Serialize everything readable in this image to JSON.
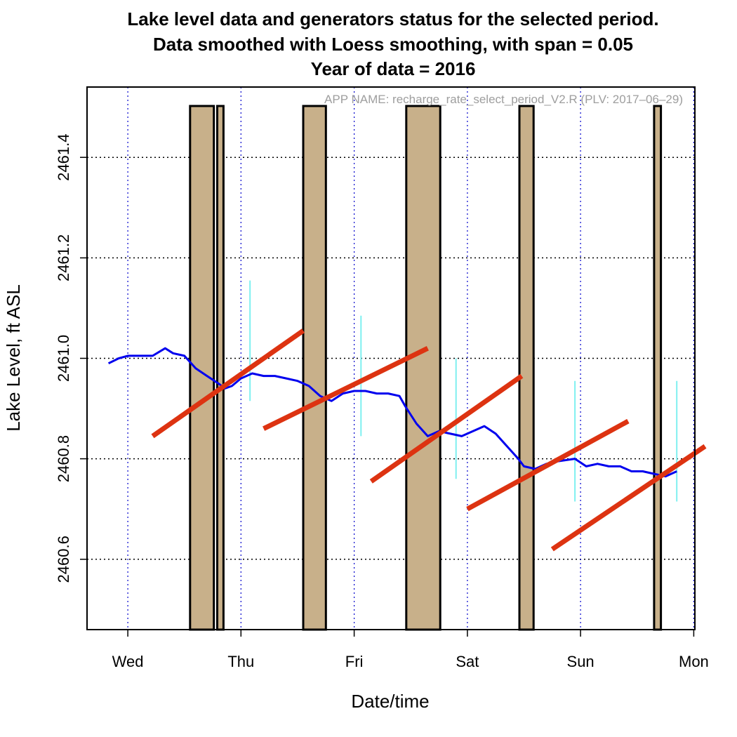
{
  "chart_data": {
    "type": "line",
    "title_lines": [
      "Lake level data and generators status for the selected period.",
      "Data smoothed with Loess smoothing, with span = 0.05",
      "Year of data = 2016"
    ],
    "annotation": "APP NAME: recharge_rate_select_period_V2.R (PLV: 2017–06–29)",
    "xlabel": "Date/time",
    "ylabel": "Lake Level, ft ASL",
    "x_ticks": [
      "Wed",
      "Thu",
      "Fri",
      "Sat",
      "Sun",
      "Mon"
    ],
    "x_unit": "days since Wed 00:00",
    "xlim": [
      -0.36,
      5.01
    ],
    "ylim": [
      2460.46,
      2461.54
    ],
    "y_ticks": [
      2460.6,
      2460.8,
      2461.0,
      2461.2,
      2461.4
    ],
    "grid": true,
    "colors": {
      "lake_level": "#0000ee",
      "generator_fill": "#c8b08a",
      "recharge_line": "#dd3311",
      "range_bar": "#7ff0f0",
      "grid": "#000000",
      "vgrid": "#0000cc"
    },
    "generator_status": [
      {
        "start": 0.55,
        "end": 0.76
      },
      {
        "start": 0.79,
        "end": 0.845
      },
      {
        "start": 1.55,
        "end": 1.75
      },
      {
        "start": 2.46,
        "end": 2.76
      },
      {
        "start": 3.46,
        "end": 3.585
      },
      {
        "start": 4.65,
        "end": 4.71
      }
    ],
    "lake_level_series": {
      "name": "Lake level (smoothed)",
      "x": [
        -0.17,
        -0.08,
        0.0,
        0.1,
        0.22,
        0.33,
        0.4,
        0.5,
        0.6,
        0.7,
        0.8,
        0.86,
        0.92,
        1.0,
        1.1,
        1.2,
        1.3,
        1.4,
        1.5,
        1.6,
        1.7,
        1.8,
        1.9,
        2.0,
        2.1,
        2.2,
        2.3,
        2.4,
        2.45,
        2.55,
        2.65,
        2.75,
        2.85,
        2.95,
        3.05,
        3.15,
        3.25,
        3.35,
        3.45,
        3.5,
        3.6,
        3.7,
        3.8,
        3.95,
        4.05,
        4.15,
        4.25,
        4.35,
        4.45,
        4.55,
        4.65,
        4.75,
        4.85
      ],
      "y": [
        2460.99,
        2461.0,
        2461.005,
        2461.005,
        2461.005,
        2461.02,
        2461.01,
        2461.005,
        2460.98,
        2460.965,
        2460.95,
        2460.94,
        2460.945,
        2460.96,
        2460.97,
        2460.965,
        2460.965,
        2460.96,
        2460.955,
        2460.945,
        2460.925,
        2460.915,
        2460.93,
        2460.935,
        2460.935,
        2460.93,
        2460.93,
        2460.925,
        2460.905,
        2460.87,
        2460.845,
        2460.855,
        2460.85,
        2460.845,
        2460.855,
        2460.865,
        2460.85,
        2460.825,
        2460.8,
        2460.785,
        2460.78,
        2460.79,
        2460.795,
        2460.8,
        2460.785,
        2460.79,
        2460.785,
        2460.785,
        2460.775,
        2460.775,
        2460.77,
        2460.765,
        2460.775
      ]
    },
    "recharge_lines": [
      {
        "x": [
          0.22,
          1.55
        ],
        "y": [
          2460.845,
          2461.055
        ]
      },
      {
        "x": [
          1.2,
          2.65
        ],
        "y": [
          2460.86,
          2461.02
        ]
      },
      {
        "x": [
          2.15,
          3.48
        ],
        "y": [
          2460.755,
          2460.965
        ]
      },
      {
        "x": [
          3.0,
          4.42
        ],
        "y": [
          2460.7,
          2460.875
        ]
      },
      {
        "x": [
          3.75,
          5.1
        ],
        "y": [
          2460.62,
          2460.825
        ]
      }
    ],
    "range_bars": [
      {
        "x": 1.08,
        "y": [
          2460.915,
          2461.155
        ]
      },
      {
        "x": 2.06,
        "y": [
          2460.845,
          2461.085
        ]
      },
      {
        "x": 2.9,
        "y": [
          2460.76,
          2461.0
        ]
      },
      {
        "x": 3.95,
        "y": [
          2460.715,
          2460.955
        ]
      },
      {
        "x": 4.85,
        "y": [
          2460.715,
          2460.955
        ]
      }
    ]
  }
}
